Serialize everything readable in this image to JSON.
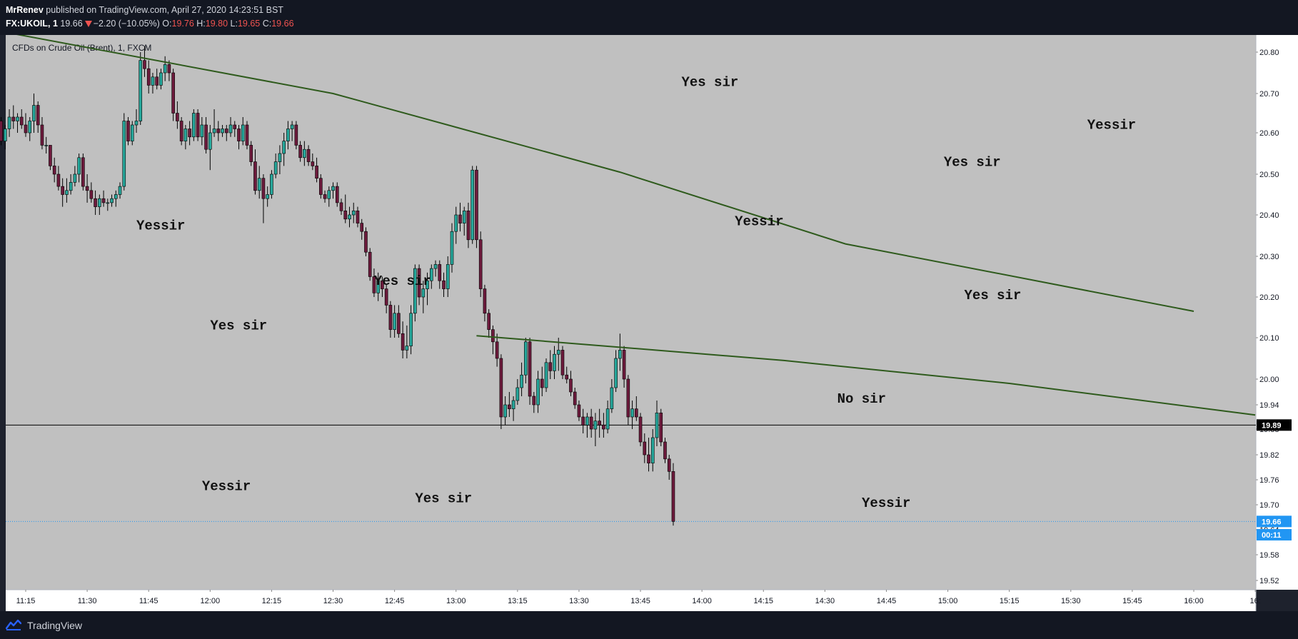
{
  "header": {
    "author": "MrRenev",
    "published": "published on TradingView.com, April 27, 2020 14:23:51 BST",
    "symbol": "FX:UKOIL, 1",
    "last": "19.66",
    "change": "−2.20 (−10.05%)",
    "o_label": "O:",
    "o_value": "19.76",
    "h_label": "H:",
    "h_value": "19.80",
    "l_label": "L:",
    "l_value": "19.65",
    "c_label": "C:",
    "c_value": "19.66"
  },
  "chart_data": {
    "type": "candlestick",
    "title": "CFDs on Crude Oil (Brent), 1, FXCM",
    "x_tick_labels": [
      "11:15",
      "11:30",
      "11:45",
      "12:00",
      "12:15",
      "12:30",
      "12:45",
      "13:00",
      "13:15",
      "13:30",
      "13:45",
      "14:00",
      "14:15",
      "14:30",
      "14:45",
      "15:00",
      "15:15",
      "15:30",
      "15:45",
      "16:00",
      "16:"
    ],
    "y_tick_labels": [
      "20.80",
      "20.70",
      "20.60",
      "20.50",
      "20.40",
      "20.30",
      "20.20",
      "20.10",
      "20.00",
      "19.94",
      "19.88",
      "19.82",
      "19.76",
      "19.70",
      "19.64",
      "19.58",
      "19.52"
    ],
    "price_labels": [
      {
        "text": "19.89",
        "price": 19.89,
        "bg": "#000000",
        "fg": "#ffffff"
      },
      {
        "text": "19.66",
        "price": 19.66,
        "bg": "#2196f3",
        "fg": "#ffffff"
      },
      {
        "text": "00:11",
        "price": 19.628,
        "bg": "#2196f3",
        "fg": "#ffffff"
      }
    ],
    "horizontal_lines": [
      {
        "price": 19.89,
        "color": "#000000",
        "style": "solid"
      },
      {
        "price": 19.66,
        "color": "#2196f3",
        "style": "dotted"
      }
    ],
    "trend_lines": [
      {
        "points": [
          [
            "11:08",
            20.87
          ],
          [
            "12:30",
            20.7
          ],
          [
            "13:40",
            20.505
          ],
          [
            "14:35",
            20.33
          ],
          [
            "16:00",
            20.165
          ]
        ],
        "color": "#2e5a1c"
      },
      {
        "points": [
          [
            "13:05",
            20.105
          ],
          [
            "14:20",
            20.045
          ],
          [
            "15:15",
            19.99
          ],
          [
            "16:15",
            19.915
          ]
        ],
        "color": "#2e5a1c"
      }
    ],
    "annotations": [
      {
        "text": "Yes sir",
        "time": "13:55",
        "price": 20.718
      },
      {
        "text": "Yessir",
        "time": "15:34",
        "price": 20.61
      },
      {
        "text": "Yes sir",
        "time": "14:59",
        "price": 20.52
      },
      {
        "text": "Yessir",
        "time": "11:42",
        "price": 20.365
      },
      {
        "text": "Yessir",
        "time": "14:08",
        "price": 20.375
      },
      {
        "text": "Yes sir",
        "time": "12:40",
        "price": 20.23
      },
      {
        "text": "Yes sir",
        "time": "15:04",
        "price": 20.195
      },
      {
        "text": "Yes sir",
        "time": "12:00",
        "price": 20.12
      },
      {
        "text": "No sir",
        "time": "14:33",
        "price": 19.945
      },
      {
        "text": "Yessir",
        "time": "11:58",
        "price": 19.735
      },
      {
        "text": "Yes sir",
        "time": "12:50",
        "price": 19.706
      },
      {
        "text": "Yessir",
        "time": "14:39",
        "price": 19.695
      }
    ],
    "candles_ohlc": [
      [
        20.62,
        20.65,
        20.57,
        20.63
      ],
      [
        20.63,
        20.64,
        20.57,
        20.58
      ],
      [
        20.58,
        20.62,
        20.56,
        20.61
      ],
      [
        20.61,
        20.66,
        20.59,
        20.64
      ],
      [
        20.64,
        20.67,
        20.61,
        20.63
      ],
      [
        20.63,
        20.65,
        20.6,
        20.64
      ],
      [
        20.64,
        20.66,
        20.61,
        20.62
      ],
      [
        20.62,
        20.65,
        20.59,
        20.6
      ],
      [
        20.6,
        20.64,
        20.58,
        20.63
      ],
      [
        20.63,
        20.7,
        20.6,
        20.67
      ],
      [
        20.67,
        20.68,
        20.6,
        20.62
      ],
      [
        20.62,
        20.64,
        20.56,
        20.57
      ],
      [
        20.57,
        20.59,
        20.55,
        20.57
      ],
      [
        20.57,
        20.57,
        20.51,
        20.52
      ],
      [
        20.52,
        20.54,
        20.48,
        20.5
      ],
      [
        20.5,
        20.52,
        20.46,
        20.47
      ],
      [
        20.47,
        20.49,
        20.42,
        20.45
      ],
      [
        20.45,
        20.49,
        20.43,
        20.46
      ],
      [
        20.46,
        20.5,
        20.45,
        20.48
      ],
      [
        20.48,
        20.52,
        20.47,
        20.5
      ],
      [
        20.5,
        20.55,
        20.48,
        20.54
      ],
      [
        20.54,
        20.55,
        20.46,
        20.47
      ],
      [
        20.47,
        20.5,
        20.43,
        20.46
      ],
      [
        20.46,
        20.48,
        20.43,
        20.44
      ],
      [
        20.44,
        20.46,
        20.4,
        20.42
      ],
      [
        20.42,
        20.45,
        20.4,
        20.44
      ],
      [
        20.44,
        20.46,
        20.42,
        20.43
      ],
      [
        20.43,
        20.44,
        20.41,
        20.43
      ],
      [
        20.43,
        20.45,
        20.42,
        20.44
      ],
      [
        20.44,
        20.46,
        20.42,
        20.45
      ],
      [
        20.45,
        20.48,
        20.44,
        20.47
      ],
      [
        20.47,
        20.65,
        20.46,
        20.63
      ],
      [
        20.63,
        20.64,
        20.57,
        20.58
      ],
      [
        20.58,
        20.63,
        20.57,
        20.62
      ],
      [
        20.62,
        20.66,
        20.6,
        20.63
      ],
      [
        20.63,
        20.8,
        20.62,
        20.78
      ],
      [
        20.78,
        20.82,
        20.74,
        20.76
      ],
      [
        20.76,
        20.78,
        20.7,
        20.72
      ],
      [
        20.72,
        20.75,
        20.7,
        20.74
      ],
      [
        20.74,
        20.76,
        20.71,
        20.72
      ],
      [
        20.72,
        20.76,
        20.71,
        20.75
      ],
      [
        20.75,
        20.79,
        20.73,
        20.77
      ],
      [
        20.77,
        20.78,
        20.73,
        20.75
      ],
      [
        20.75,
        20.76,
        20.63,
        20.65
      ],
      [
        20.65,
        20.68,
        20.61,
        20.63
      ],
      [
        20.63,
        20.64,
        20.57,
        20.58
      ],
      [
        20.58,
        20.62,
        20.56,
        20.61
      ],
      [
        20.61,
        20.63,
        20.57,
        20.59
      ],
      [
        20.59,
        20.66,
        20.58,
        20.65
      ],
      [
        20.65,
        20.66,
        20.58,
        20.59
      ],
      [
        20.59,
        20.64,
        20.57,
        20.62
      ],
      [
        20.62,
        20.64,
        20.55,
        20.56
      ],
      [
        20.56,
        20.62,
        20.51,
        20.6
      ],
      [
        20.6,
        20.66,
        20.59,
        20.61
      ],
      [
        20.61,
        20.63,
        20.58,
        20.6
      ],
      [
        20.6,
        20.62,
        20.59,
        20.61
      ],
      [
        20.61,
        20.62,
        20.58,
        20.6
      ],
      [
        20.6,
        20.64,
        20.59,
        20.62
      ],
      [
        20.62,
        20.63,
        20.59,
        20.61
      ],
      [
        20.61,
        20.62,
        20.56,
        20.58
      ],
      [
        20.58,
        20.64,
        20.57,
        20.62
      ],
      [
        20.62,
        20.63,
        20.56,
        20.57
      ],
      [
        20.57,
        20.58,
        20.52,
        20.53
      ],
      [
        20.53,
        20.56,
        20.45,
        20.46
      ],
      [
        20.46,
        20.52,
        20.44,
        20.49
      ],
      [
        20.49,
        20.5,
        20.38,
        20.44
      ],
      [
        20.44,
        20.47,
        20.42,
        20.45
      ],
      [
        20.45,
        20.51,
        20.44,
        20.5
      ],
      [
        20.5,
        20.55,
        20.49,
        20.53
      ],
      [
        20.53,
        20.57,
        20.5,
        20.55
      ],
      [
        20.55,
        20.6,
        20.52,
        20.58
      ],
      [
        20.58,
        20.63,
        20.56,
        20.61
      ],
      [
        20.61,
        20.63,
        20.58,
        20.62
      ],
      [
        20.62,
        20.63,
        20.56,
        20.57
      ],
      [
        20.57,
        20.58,
        20.53,
        20.54
      ],
      [
        20.54,
        20.58,
        20.52,
        20.56
      ],
      [
        20.56,
        20.57,
        20.52,
        20.53
      ],
      [
        20.53,
        20.55,
        20.51,
        20.52
      ],
      [
        20.52,
        20.54,
        20.48,
        20.49
      ],
      [
        20.49,
        20.5,
        20.44,
        20.45
      ],
      [
        20.45,
        20.46,
        20.43,
        20.44
      ],
      [
        20.44,
        20.47,
        20.42,
        20.46
      ],
      [
        20.46,
        20.48,
        20.44,
        20.47
      ],
      [
        20.47,
        20.48,
        20.42,
        20.43
      ],
      [
        20.43,
        20.44,
        20.4,
        20.41
      ],
      [
        20.41,
        20.45,
        20.38,
        20.39
      ],
      [
        20.39,
        20.42,
        20.37,
        20.4
      ],
      [
        20.4,
        20.43,
        20.38,
        20.41
      ],
      [
        20.41,
        20.42,
        20.37,
        20.38
      ],
      [
        20.38,
        20.39,
        20.34,
        20.36
      ],
      [
        20.36,
        20.37,
        20.3,
        20.31
      ],
      [
        20.31,
        20.32,
        20.24,
        20.25
      ],
      [
        20.25,
        20.27,
        20.2,
        20.21
      ],
      [
        20.21,
        20.26,
        20.19,
        20.24
      ],
      [
        20.24,
        20.25,
        20.2,
        20.22
      ],
      [
        20.22,
        20.23,
        20.16,
        20.18
      ],
      [
        20.18,
        20.19,
        20.1,
        20.12
      ],
      [
        20.12,
        20.18,
        20.1,
        20.16
      ],
      [
        20.16,
        20.18,
        20.1,
        20.11
      ],
      [
        20.11,
        20.14,
        20.05,
        20.07
      ],
      [
        20.07,
        20.13,
        20.05,
        20.08
      ],
      [
        20.08,
        20.18,
        20.06,
        20.16
      ],
      [
        20.16,
        20.28,
        20.14,
        20.27
      ],
      [
        20.27,
        20.28,
        20.18,
        20.2
      ],
      [
        20.2,
        20.24,
        20.16,
        20.22
      ],
      [
        20.22,
        20.26,
        20.18,
        20.24
      ],
      [
        20.24,
        20.28,
        20.22,
        20.27
      ],
      [
        20.27,
        20.29,
        20.25,
        20.28
      ],
      [
        20.28,
        20.29,
        20.22,
        20.24
      ],
      [
        20.24,
        20.26,
        20.2,
        20.22
      ],
      [
        20.22,
        20.3,
        20.2,
        20.28
      ],
      [
        20.28,
        20.38,
        20.26,
        20.36
      ],
      [
        20.36,
        20.42,
        20.33,
        20.4
      ],
      [
        20.4,
        20.43,
        20.36,
        20.38
      ],
      [
        20.38,
        20.42,
        20.35,
        20.41
      ],
      [
        20.41,
        20.43,
        20.32,
        20.34
      ],
      [
        20.34,
        20.52,
        20.33,
        20.51
      ],
      [
        20.51,
        20.52,
        20.32,
        20.34
      ],
      [
        20.34,
        20.36,
        20.2,
        20.22
      ],
      [
        20.22,
        20.23,
        20.14,
        20.16
      ],
      [
        20.16,
        20.17,
        20.1,
        20.12
      ],
      [
        20.12,
        20.13,
        20.06,
        20.09
      ],
      [
        20.09,
        20.11,
        20.03,
        20.05
      ],
      [
        20.05,
        20.06,
        19.88,
        19.91
      ],
      [
        19.91,
        19.96,
        19.89,
        19.94
      ],
      [
        19.94,
        19.97,
        19.91,
        19.93
      ],
      [
        19.93,
        19.96,
        19.9,
        19.95
      ],
      [
        19.95,
        20.0,
        19.94,
        19.98
      ],
      [
        19.98,
        20.04,
        19.96,
        20.01
      ],
      [
        20.01,
        20.1,
        19.99,
        20.09
      ],
      [
        20.09,
        20.1,
        19.94,
        19.96
      ],
      [
        19.96,
        19.97,
        19.92,
        19.94
      ],
      [
        19.94,
        20.02,
        19.92,
        20.0
      ],
      [
        20.0,
        20.03,
        19.96,
        19.98
      ],
      [
        19.98,
        20.05,
        19.97,
        20.04
      ],
      [
        20.04,
        20.07,
        20.0,
        20.02
      ],
      [
        20.02,
        20.08,
        20.0,
        20.06
      ],
      [
        20.06,
        20.1,
        20.02,
        20.07
      ],
      [
        20.07,
        20.08,
        20.0,
        20.01
      ],
      [
        20.01,
        20.03,
        19.99,
        20.0
      ],
      [
        20.0,
        20.02,
        19.96,
        19.97
      ],
      [
        19.97,
        19.98,
        19.93,
        19.94
      ],
      [
        19.94,
        19.95,
        19.9,
        19.91
      ],
      [
        19.91,
        19.93,
        19.87,
        19.89
      ],
      [
        19.89,
        19.92,
        19.86,
        19.91
      ],
      [
        19.91,
        19.93,
        19.86,
        19.88
      ],
      [
        19.88,
        19.92,
        19.84,
        19.9
      ],
      [
        19.9,
        19.93,
        19.86,
        19.89
      ],
      [
        19.89,
        19.92,
        19.86,
        19.88
      ],
      [
        19.88,
        19.95,
        19.87,
        19.93
      ],
      [
        19.93,
        20.0,
        19.92,
        19.98
      ],
      [
        19.98,
        20.07,
        19.97,
        20.05
      ],
      [
        20.05,
        20.11,
        20.02,
        20.07
      ],
      [
        20.07,
        20.08,
        19.98,
        20.0
      ],
      [
        20.0,
        20.01,
        19.89,
        19.91
      ],
      [
        19.91,
        19.95,
        19.88,
        19.93
      ],
      [
        19.93,
        19.96,
        19.9,
        19.91
      ],
      [
        19.91,
        19.92,
        19.84,
        19.85
      ],
      [
        19.85,
        19.87,
        19.8,
        19.82
      ],
      [
        19.82,
        19.86,
        19.78,
        19.8
      ],
      [
        19.8,
        19.88,
        19.78,
        19.86
      ],
      [
        19.86,
        19.95,
        19.84,
        19.92
      ],
      [
        19.92,
        19.93,
        19.84,
        19.85
      ],
      [
        19.85,
        19.86,
        19.8,
        19.81
      ],
      [
        19.81,
        19.82,
        19.76,
        19.78
      ],
      [
        19.78,
        19.8,
        19.65,
        19.66
      ]
    ],
    "candle_first_time": "11:08",
    "candle_interval_minutes": 1,
    "colors": {
      "up": "#26a69a",
      "down": "#6d1a3c",
      "wick": "#000000",
      "plot_bg": "#c0c0c0",
      "axis_text": "#131722"
    }
  },
  "footer": {
    "brand": "TradingView"
  }
}
